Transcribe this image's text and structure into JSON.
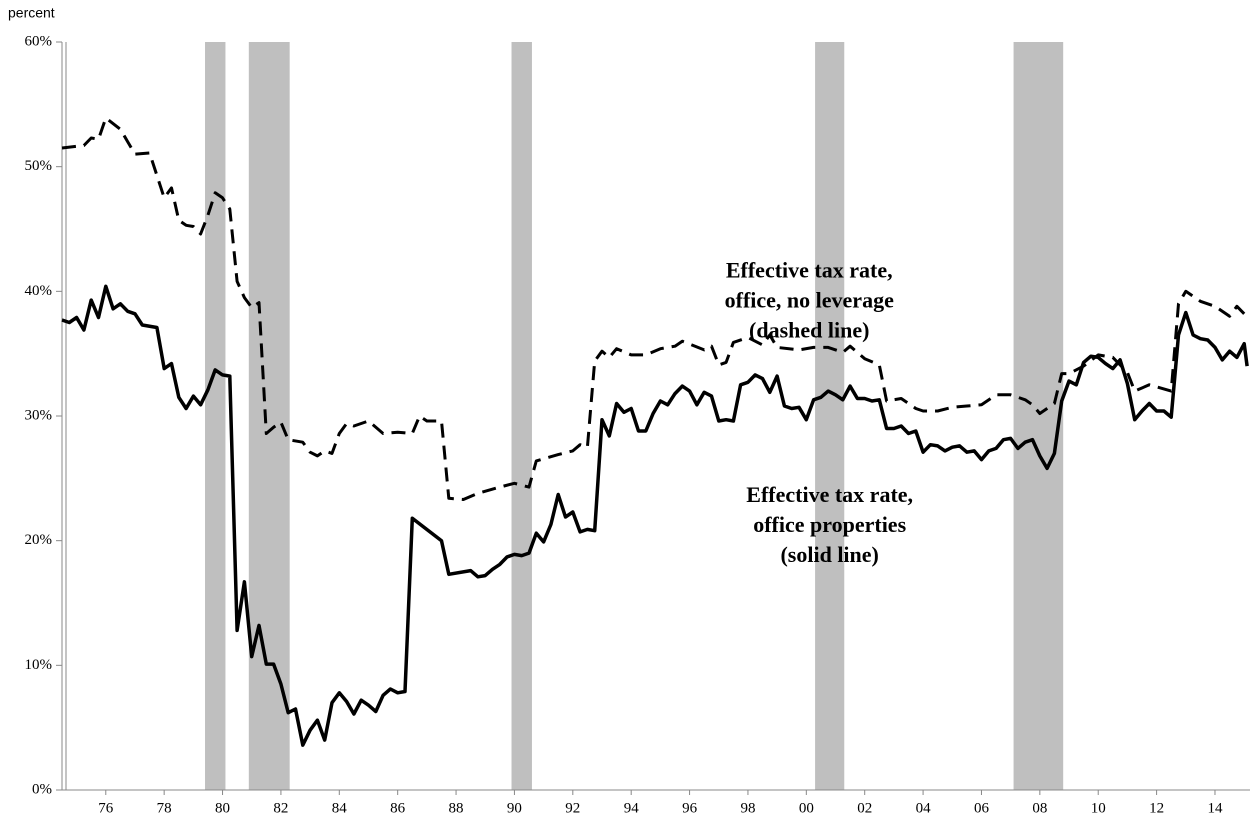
{
  "chart_data": {
    "type": "line",
    "y_label": "percent",
    "xlim": [
      1974.5,
      2015.2
    ],
    "ylim": [
      0,
      60
    ],
    "yticks": [
      {
        "value": 0,
        "label": "0%"
      },
      {
        "value": 10,
        "label": "10%"
      },
      {
        "value": 20,
        "label": "20%"
      },
      {
        "value": 30,
        "label": "30%"
      },
      {
        "value": 40,
        "label": "40%"
      },
      {
        "value": 50,
        "label": "50%"
      },
      {
        "value": 60,
        "label": "60%"
      }
    ],
    "xticks": [
      {
        "value": 1976,
        "label": "76"
      },
      {
        "value": 1978,
        "label": "78"
      },
      {
        "value": 1980,
        "label": "80"
      },
      {
        "value": 1982,
        "label": "82"
      },
      {
        "value": 1984,
        "label": "84"
      },
      {
        "value": 1986,
        "label": "86"
      },
      {
        "value": 1988,
        "label": "88"
      },
      {
        "value": 1990,
        "label": "90"
      },
      {
        "value": 1992,
        "label": "92"
      },
      {
        "value": 1994,
        "label": "94"
      },
      {
        "value": 1996,
        "label": "96"
      },
      {
        "value": 1998,
        "label": "98"
      },
      {
        "value": 2000,
        "label": "00"
      },
      {
        "value": 2002,
        "label": "02"
      },
      {
        "value": 2004,
        "label": "04"
      },
      {
        "value": 2006,
        "label": "06"
      },
      {
        "value": 2008,
        "label": "08"
      },
      {
        "value": 2010,
        "label": "10"
      },
      {
        "value": 2012,
        "label": "12"
      },
      {
        "value": 2014,
        "label": "14"
      }
    ],
    "recessions": [
      [
        1979.4,
        1980.1
      ],
      [
        1980.9,
        1982.3
      ],
      [
        1989.9,
        1990.6
      ],
      [
        2000.3,
        2001.3
      ],
      [
        2007.1,
        2008.8
      ]
    ],
    "recession_color": "#bfbfbf",
    "annotations": [
      {
        "lines": [
          "Effective tax rate,",
          "office, no leverage",
          "(dashed line)"
        ],
        "x": 2000.1,
        "y": 41.5
      },
      {
        "lines": [
          "Effective tax rate,",
          "office properties",
          "(solid line)"
        ],
        "x": 2000.8,
        "y": 23.5
      }
    ],
    "series": [
      {
        "name": "Effective tax rate, office properties",
        "color": "#000000",
        "style": "solid",
        "x": [
          1974.5,
          1974.75,
          1975,
          1975.25,
          1975.5,
          1975.75,
          1976,
          1976.25,
          1976.5,
          1976.75,
          1977,
          1977.25,
          1977.75,
          1978,
          1978.25,
          1978.5,
          1978.75,
          1979,
          1979.25,
          1979.5,
          1979.75,
          1980,
          1980.25,
          1980.5,
          1980.75,
          1981,
          1981.25,
          1981.5,
          1981.75,
          1982,
          1982.25,
          1982.5,
          1982.75,
          1983,
          1983.25,
          1983.5,
          1983.75,
          1984,
          1984.25,
          1984.5,
          1984.75,
          1985,
          1985.25,
          1985.5,
          1985.75,
          1986,
          1986.25,
          1986.5,
          1987.5,
          1987.75,
          1988.5,
          1988.75,
          1989,
          1989.25,
          1989.5,
          1989.75,
          1990,
          1990.25,
          1990.5,
          1990.75,
          1991,
          1991.25,
          1991.5,
          1991.75,
          1992,
          1992.25,
          1992.5,
          1992.75,
          1993,
          1993.25,
          1993.5,
          1993.75,
          1994,
          1994.25,
          1994.5,
          1994.75,
          1995,
          1995.25,
          1995.5,
          1995.75,
          1996,
          1996.25,
          1996.5,
          1996.75,
          1997,
          1997.25,
          1997.5,
          1997.75,
          1998,
          1998.25,
          1998.5,
          1998.75,
          1999,
          1999.25,
          1999.5,
          1999.75,
          2000,
          2000.25,
          2000.5,
          2000.75,
          2001,
          2001.25,
          2001.5,
          2001.75,
          2002,
          2002.25,
          2002.5,
          2002.75,
          2003,
          2003.25,
          2003.5,
          2003.75,
          2004,
          2004.25,
          2004.5,
          2004.75,
          2005,
          2005.25,
          2005.5,
          2005.75,
          2006,
          2006.25,
          2006.5,
          2006.75,
          2007,
          2007.25,
          2007.5,
          2007.75,
          2008,
          2008.25,
          2008.5,
          2008.75,
          2009,
          2009.25,
          2009.5,
          2009.75,
          2010,
          2010.25,
          2010.5,
          2010.75,
          2011,
          2011.25,
          2011.5,
          2011.75,
          2012,
          2012.25,
          2012.5,
          2012.75,
          2013,
          2013.25,
          2013.5,
          2013.75,
          2014,
          2014.25,
          2014.5,
          2014.75,
          2015,
          2015.1
        ],
        "values": [
          37.7,
          37.5,
          37.9,
          36.9,
          39.3,
          37.9,
          40.4,
          38.6,
          39.0,
          38.4,
          38.2,
          37.3,
          37.1,
          33.8,
          34.2,
          31.5,
          30.6,
          31.6,
          30.9,
          32.1,
          33.7,
          33.3,
          33.2,
          12.8,
          16.7,
          10.7,
          13.2,
          10.1,
          10.1,
          8.5,
          6.2,
          6.5,
          3.6,
          4.8,
          5.6,
          4.0,
          7.0,
          7.8,
          7.1,
          6.1,
          7.2,
          6.8,
          6.3,
          7.6,
          8.1,
          7.8,
          7.9,
          21.8,
          20.0,
          17.3,
          17.6,
          17.1,
          17.2,
          17.7,
          18.1,
          18.7,
          18.9,
          18.8,
          19.0,
          20.6,
          19.9,
          21.3,
          23.7,
          21.9,
          22.3,
          20.7,
          20.9,
          20.8,
          29.7,
          28.4,
          31.0,
          30.3,
          30.6,
          28.8,
          28.8,
          30.2,
          31.2,
          30.9,
          31.8,
          32.4,
          32.0,
          30.9,
          31.9,
          31.6,
          29.6,
          29.7,
          29.6,
          32.5,
          32.7,
          33.3,
          33.0,
          31.9,
          33.2,
          30.8,
          30.6,
          30.7,
          29.7,
          31.3,
          31.5,
          32.0,
          31.7,
          31.3,
          32.4,
          31.4,
          31.4,
          31.2,
          31.3,
          29.0,
          29.0,
          29.2,
          28.6,
          28.8,
          27.1,
          27.7,
          27.6,
          27.2,
          27.5,
          27.6,
          27.1,
          27.2,
          26.5,
          27.2,
          27.4,
          28.1,
          28.2,
          27.4,
          27.9,
          28.1,
          26.8,
          25.8,
          27.0,
          31.2,
          32.8,
          32.5,
          34.3,
          34.8,
          34.7,
          34.2,
          33.8,
          34.5,
          32.6,
          29.7,
          30.4,
          31.0,
          30.4,
          30.4,
          29.9,
          36.5,
          38.3,
          36.5,
          36.2,
          36.1,
          35.5,
          34.5,
          35.2,
          34.7,
          35.8,
          34.0
        ]
      },
      {
        "name": "Effective tax rate, office, no leverage",
        "color": "#000000",
        "style": "dashed",
        "x": [
          1974.5,
          1975.25,
          1975.5,
          1975.75,
          1976,
          1976.5,
          1977,
          1977.5,
          1978,
          1978.25,
          1978.5,
          1978.75,
          1979,
          1979.25,
          1979.5,
          1979.75,
          1980,
          1980.25,
          1980.5,
          1980.75,
          1981,
          1981.25,
          1981.5,
          1981.75,
          1982,
          1982.25,
          1982.75,
          1983,
          1983.25,
          1983.5,
          1983.75,
          1984,
          1984.25,
          1984.5,
          1985,
          1985.5,
          1986,
          1986.5,
          1986.75,
          1987,
          1987.5,
          1987.75,
          1988.25,
          1988.75,
          1989.5,
          1990,
          1990.5,
          1990.75,
          1991.5,
          1992,
          1992.25,
          1992.5,
          1992.75,
          1993,
          1993.25,
          1993.5,
          1994,
          1994.5,
          1995,
          1995.5,
          1995.75,
          1996.5,
          1996.75,
          1997,
          1997.25,
          1997.5,
          1998,
          1998.5,
          1998.75,
          1999,
          1999.75,
          2000.25,
          2000.75,
          2001.25,
          2001.5,
          2002,
          2002.5,
          2002.75,
          2003.25,
          2003.75,
          2004,
          2004.5,
          2005,
          2005.5,
          2006,
          2006.5,
          2007,
          2007.5,
          2007.75,
          2008,
          2008.25,
          2008.5,
          2008.75,
          2009,
          2009.5,
          2010,
          2010.5,
          2011,
          2011.25,
          2011.75,
          2012.5,
          2012.75,
          2013,
          2013.5,
          2014,
          2014.5,
          2014.75,
          2015
        ],
        "values": [
          51.5,
          51.7,
          52.3,
          52.2,
          53.9,
          53.0,
          51.0,
          51.1,
          47.5,
          48.3,
          45.7,
          45.3,
          45.2,
          44.6,
          46.1,
          47.9,
          47.5,
          46.6,
          40.8,
          39.5,
          38.7,
          39.1,
          28.6,
          29.1,
          29.5,
          28.1,
          27.9,
          27.1,
          26.8,
          27.2,
          27.0,
          28.6,
          29.4,
          29.2,
          29.6,
          28.6,
          28.7,
          28.6,
          30.0,
          29.6,
          29.6,
          23.4,
          23.3,
          23.8,
          24.3,
          24.6,
          24.3,
          26.4,
          26.9,
          27.2,
          27.7,
          27.5,
          34.4,
          35.2,
          34.7,
          35.4,
          34.9,
          34.9,
          35.4,
          35.6,
          36.0,
          35.3,
          35.6,
          34.1,
          34.3,
          35.9,
          36.3,
          35.7,
          36.5,
          35.5,
          35.3,
          35.5,
          35.5,
          35.1,
          35.6,
          34.6,
          34.1,
          31.2,
          31.4,
          30.6,
          30.4,
          30.4,
          30.7,
          30.8,
          30.9,
          31.7,
          31.7,
          31.3,
          30.9,
          30.2,
          30.6,
          31.0,
          33.4,
          33.4,
          34.0,
          34.9,
          34.7,
          33.5,
          32.0,
          32.5,
          32.0,
          39.0,
          40.0,
          39.2,
          38.8,
          38.0,
          38.8,
          38.2
        ]
      }
    ]
  }
}
